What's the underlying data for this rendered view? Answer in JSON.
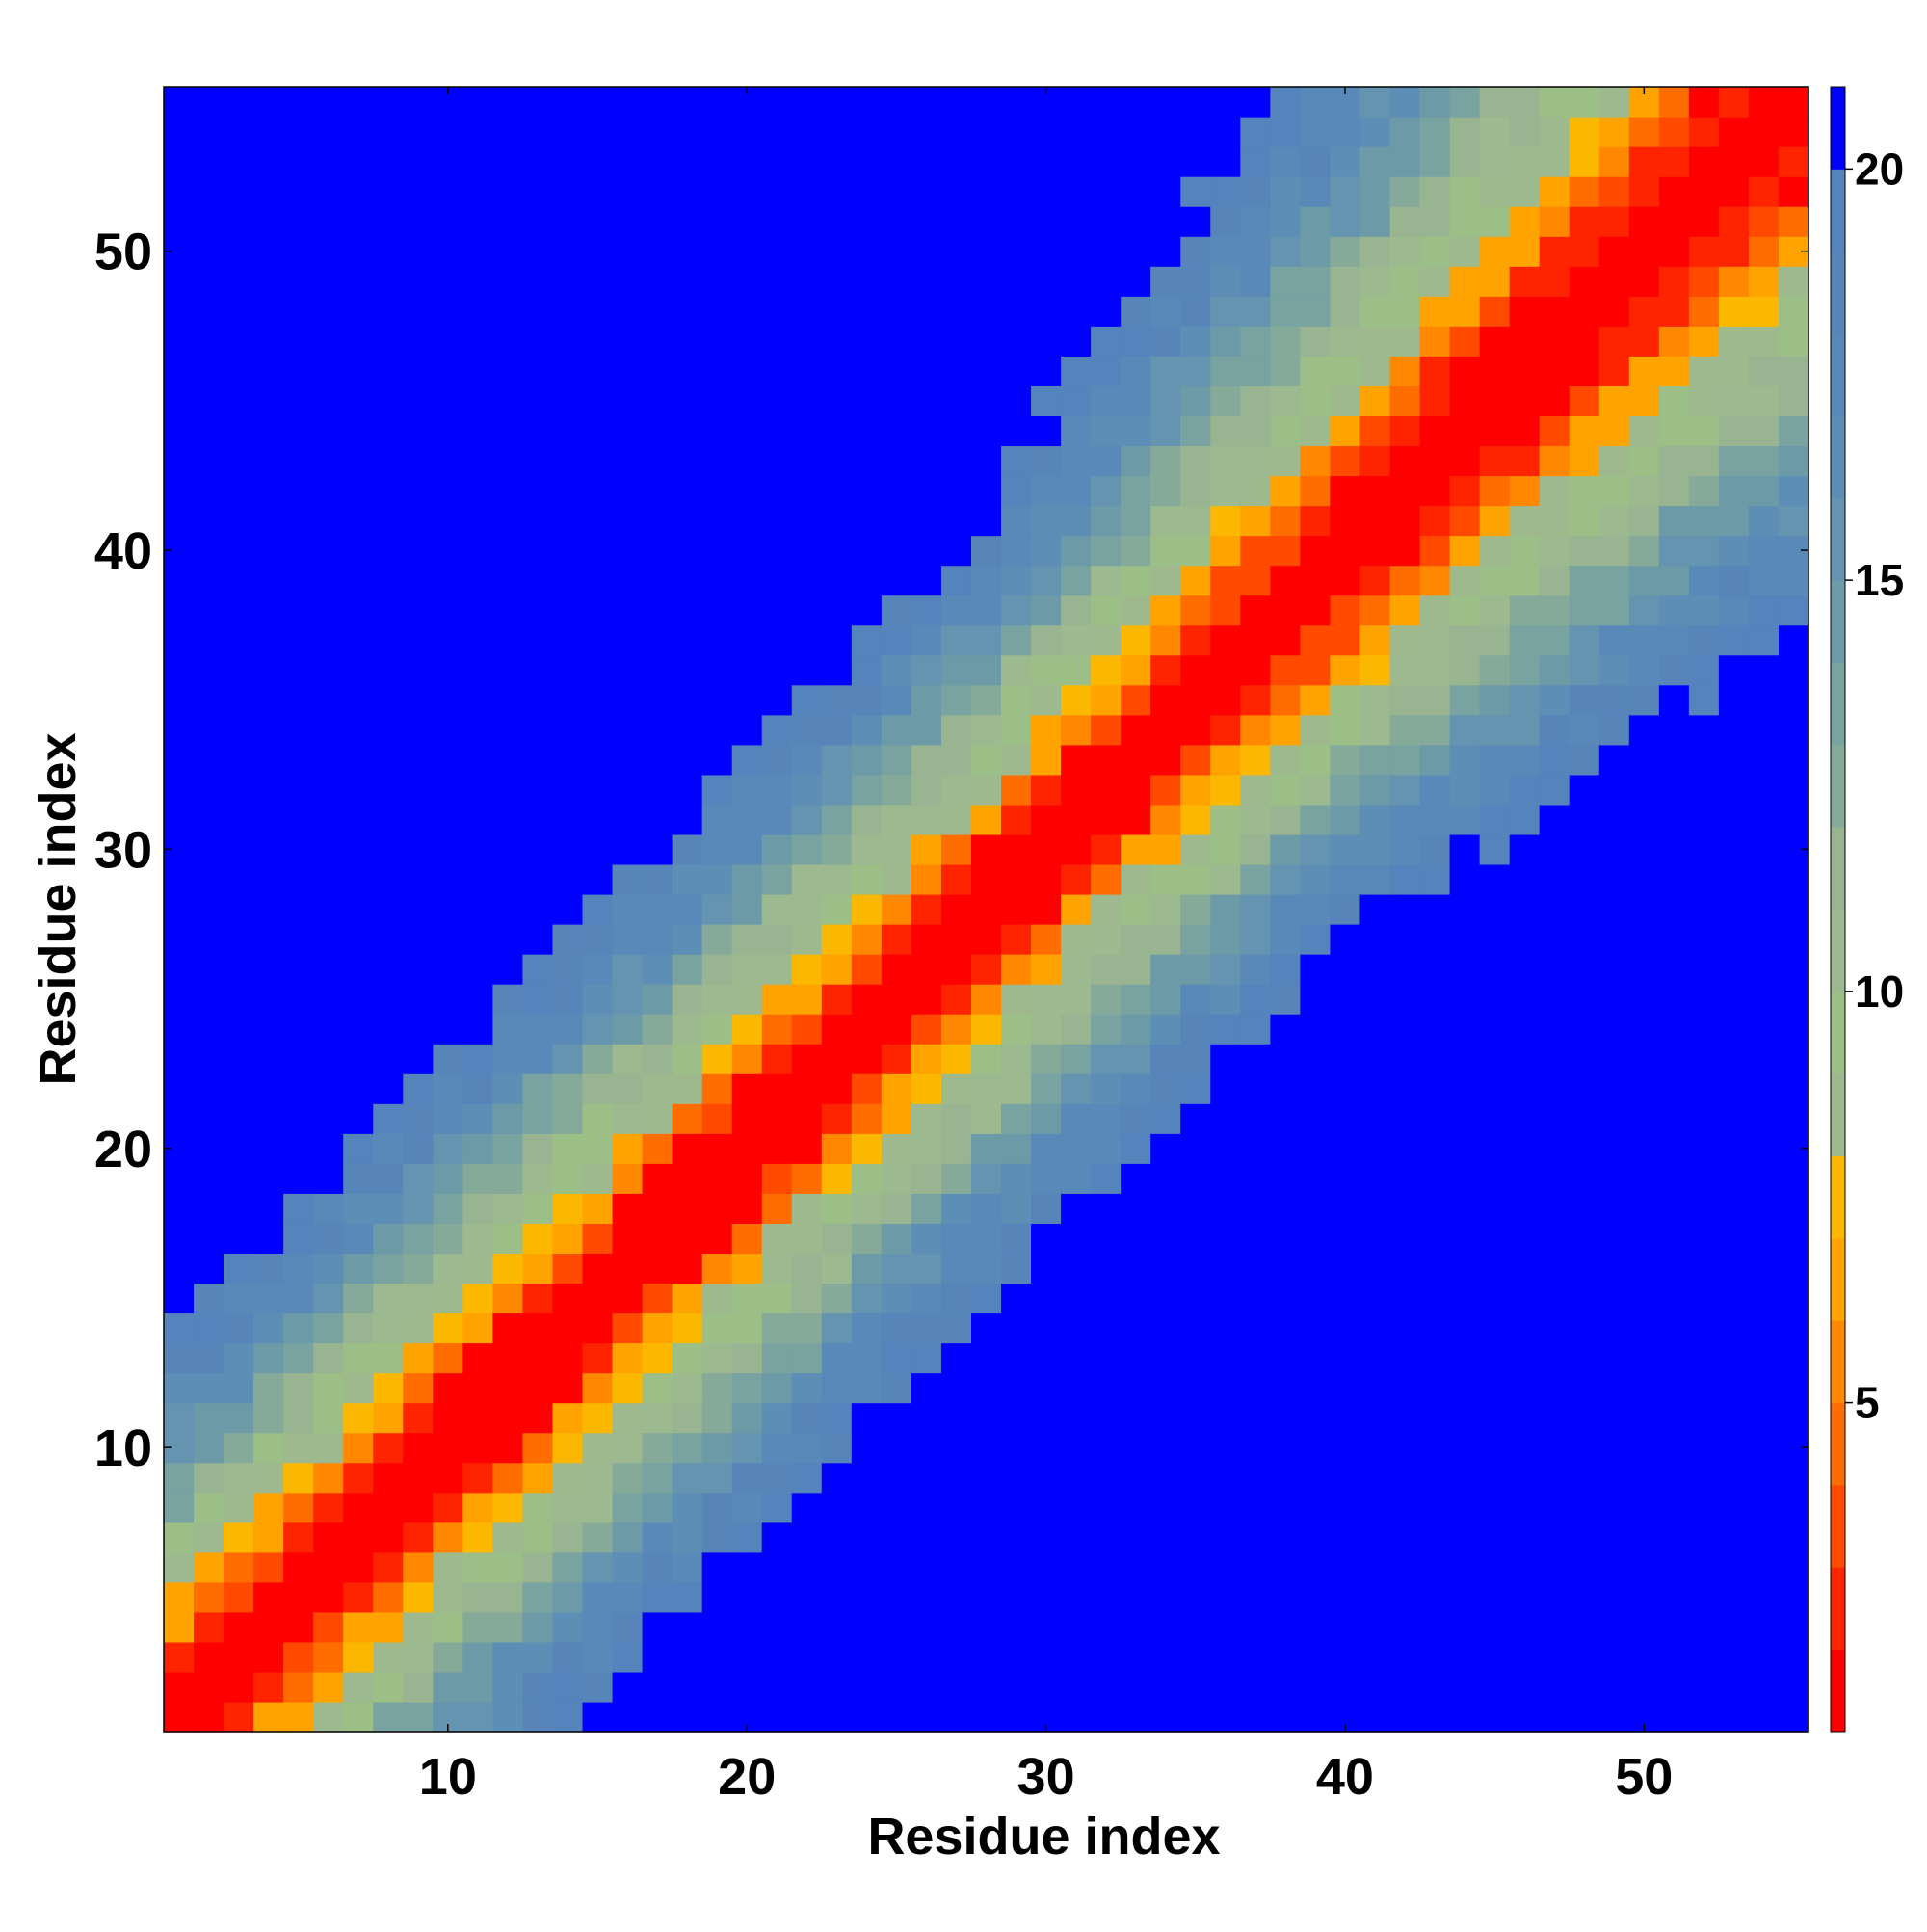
{
  "chart_data": {
    "type": "heatmap",
    "title": "",
    "xlabel": "Residue index",
    "ylabel": "Residue index",
    "n_residues": 55,
    "x_range": [
      0.5,
      55.5
    ],
    "y_range": [
      0.5,
      55.5
    ],
    "x_ticks": [
      10,
      20,
      30,
      40,
      50
    ],
    "y_ticks": [
      10,
      20,
      30,
      40,
      50
    ],
    "colorbar": {
      "range": [
        1,
        21
      ],
      "ticks": [
        5,
        10,
        15,
        20
      ],
      "levels": [
        {
          "max": 2,
          "color": "#ff0000"
        },
        {
          "max": 3,
          "color": "#ff2400"
        },
        {
          "max": 4,
          "color": "#ff4a00"
        },
        {
          "max": 5,
          "color": "#ff6d00"
        },
        {
          "max": 6,
          "color": "#ff8800"
        },
        {
          "max": 7,
          "color": "#ffa300"
        },
        {
          "max": 8,
          "color": "#fcb800"
        },
        {
          "max": 9,
          "color": "#9eb98e"
        },
        {
          "max": 10,
          "color": "#9cbe87"
        },
        {
          "max": 11,
          "color": "#9cb98f"
        },
        {
          "max": 12,
          "color": "#98b491"
        },
        {
          "max": 13,
          "color": "#86aa9a"
        },
        {
          "max": 14,
          "color": "#78a3a1"
        },
        {
          "max": 15,
          "color": "#6c9aa6"
        },
        {
          "max": 16,
          "color": "#6494b0"
        },
        {
          "max": 17,
          "color": "#5d8eb5"
        },
        {
          "max": 18,
          "color": "#5989b8"
        },
        {
          "max": 19,
          "color": "#5785ba"
        },
        {
          "max": 20,
          "color": "#5583bc"
        },
        {
          "max": 21,
          "color": "#0000ff"
        }
      ]
    },
    "values_description": "Pairwise residue distance map (symmetric). Value grows with separation |i-j|; cells beyond ~20 are saturated blue.",
    "band_profile": {
      "separation": [
        0,
        1,
        2,
        3,
        4,
        5,
        6,
        7,
        8,
        9,
        10,
        11,
        12,
        13,
        14,
        15
      ],
      "value": [
        1.5,
        1.8,
        2.5,
        5.5,
        7.5,
        9.5,
        10.5,
        12.0,
        13.5,
        15.0,
        16.5,
        17.5,
        18.5,
        19.5,
        20.5,
        21.0
      ]
    }
  }
}
